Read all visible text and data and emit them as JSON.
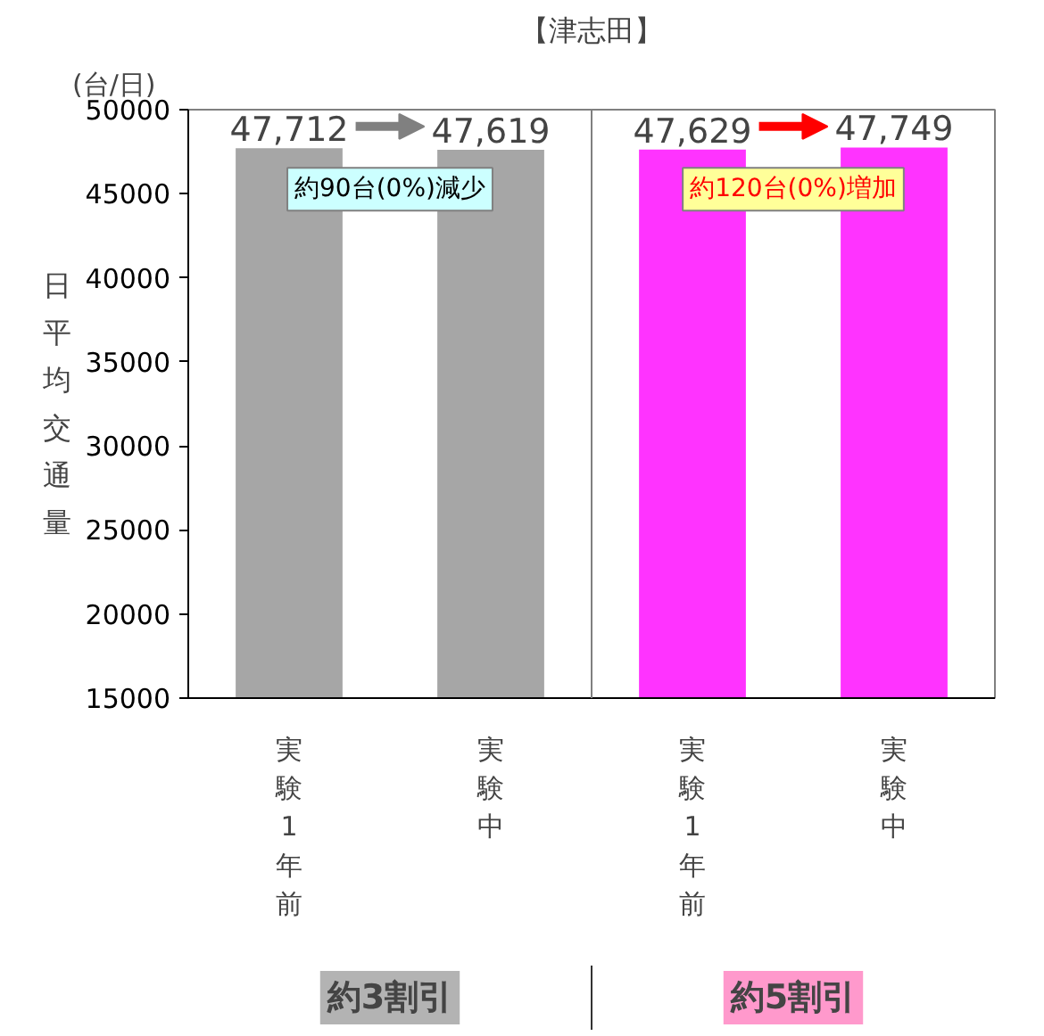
{
  "chart_data": {
    "type": "bar",
    "title": "【津志田】",
    "ylabel": "日平均交通量",
    "categories": [
      "実験1年前",
      "実験中",
      "実験1年前",
      "実験中"
    ],
    "values": [
      47712,
      47619,
      47629,
      47749
    ],
    "colors": [
      "#a6a6a6",
      "#a6a6a6",
      "#ff33ff",
      "#ff33ff"
    ],
    "value_labels": [
      "47,712",
      "47,619",
      "47,629",
      "47,749"
    ],
    "ylim": [
      15000,
      50000
    ],
    "yticks": [
      15000,
      20000,
      25000,
      30000,
      35000,
      40000,
      45000,
      50000
    ],
    "grid": false,
    "annotations": [
      "(台/日)",
      "約90台(0%)減少",
      "約120台(0%)増加",
      "約3割引",
      "約5割引"
    ]
  }
}
